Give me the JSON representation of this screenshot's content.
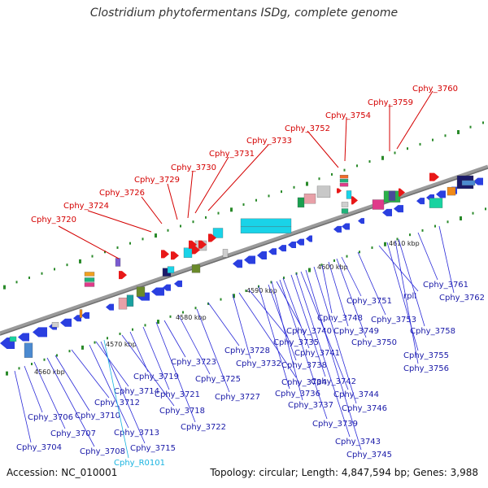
{
  "header": {
    "title": "Clostridium phytofermentans ISDg, complete genome"
  },
  "footer": {
    "accession": "Accession: NC_010001",
    "topology": "Topology: circular; Length: 4,847,594 bp; Genes: 3,988"
  },
  "colors": {
    "backbone": "#8a8a8a",
    "forward_gene": "#2a3fe0",
    "highlight_label": "#d40000",
    "gene_label": "#1a1aa8",
    "rna_label": "#19b3e0",
    "tick": "#2a8a2a"
  },
  "scale": {
    "tick_labels": [
      "4560 kbp",
      "4570 kbp",
      "4580 kbp",
      "4590 kbp",
      "4600 kbp",
      "4610 kbp"
    ]
  },
  "highlighted_genes": [
    "Cphy_3720",
    "Cphy_3724",
    "Cphy_3726",
    "Cphy_3729",
    "Cphy_3730",
    "Cphy_3731",
    "Cphy_3733",
    "Cphy_3752",
    "Cphy_3754",
    "Cphy_3759",
    "Cphy_3760"
  ],
  "gene_labels": [
    "Cphy_3704",
    "Cphy_3706",
    "Cphy_3707",
    "Cphy_3708",
    "Cphy_3710",
    "Cphy_3712",
    "Cphy_3713",
    "Cphy_3714",
    "Cphy_3715",
    "Cphy_R0101",
    "Cphy_3718",
    "Cphy_3719",
    "Cphy_3721",
    "Cphy_3722",
    "Cphy_3723",
    "Cphy_3725",
    "Cphy_3727",
    "Cphy_3728",
    "Cphy_3732",
    "Cphy_3734",
    "Cphy_3735",
    "Cphy_3736",
    "Cphy_3737",
    "Cphy_3738",
    "Cphy_3739",
    "Cphy_3740",
    "Cphy_3741",
    "Cphy_3742",
    "Cphy_3743",
    "Cphy_3744",
    "Cphy_3745",
    "Cphy_3746",
    "Cphy_3748",
    "Cphy_3749",
    "Cphy_3750",
    "Cphy_3751",
    "Cphy_3753",
    "rplI",
    "Cphy_3755",
    "Cphy_3756",
    "Cphy_3758",
    "Cphy_3761",
    "Cphy_3762"
  ]
}
